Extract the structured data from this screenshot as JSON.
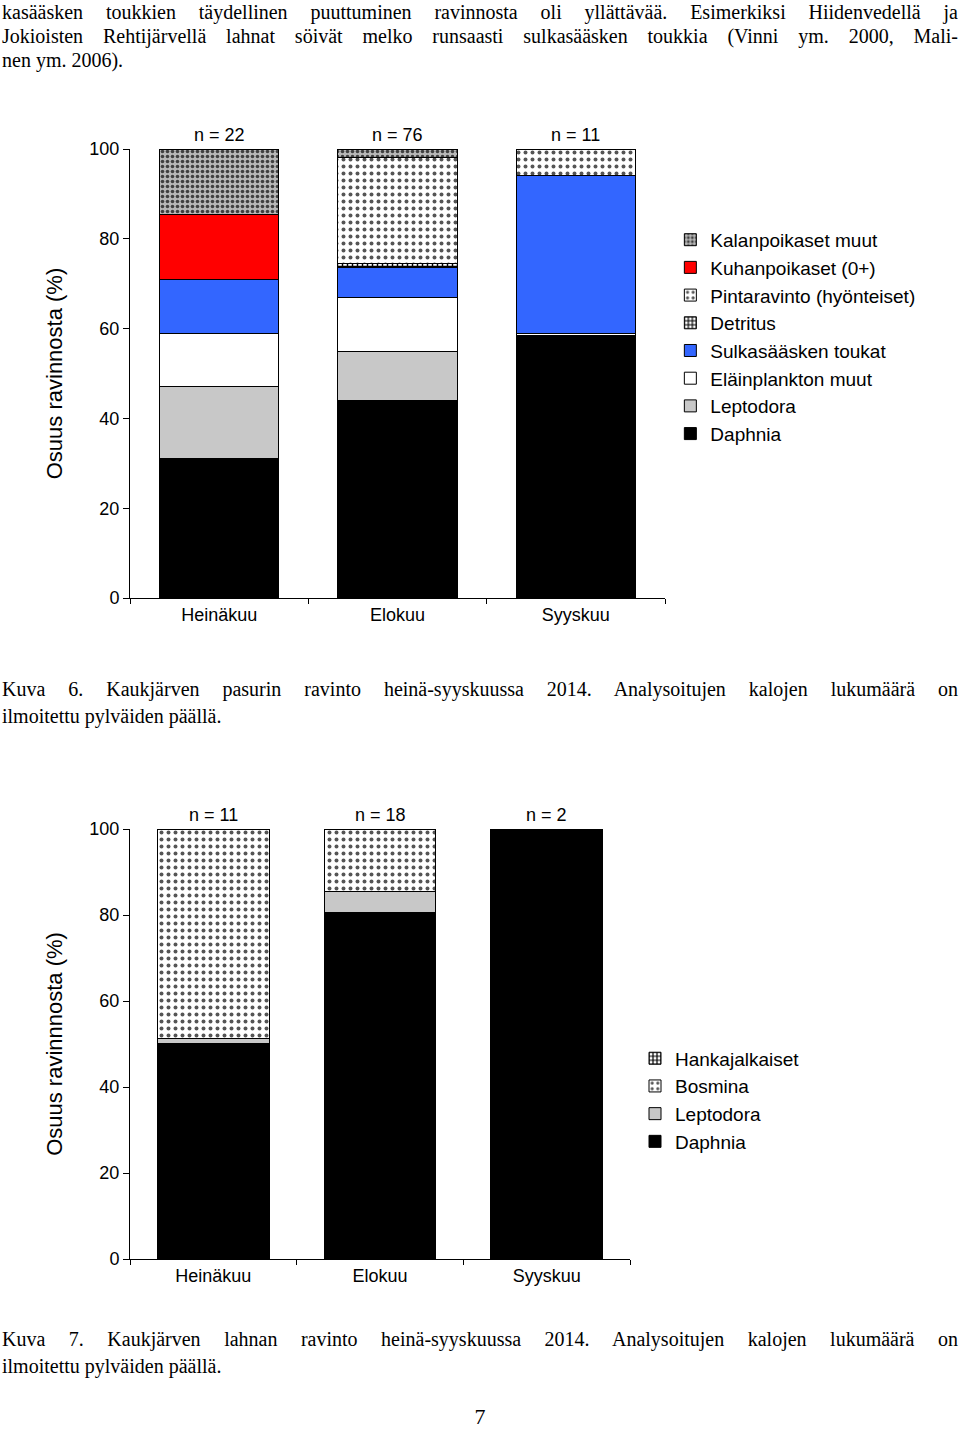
{
  "document": {
    "paragraph_lines": [
      "kasääsken toukkien täydellinen puuttuminen ravinnosta oli yllättävää. Esimerkiksi Hiidenvedellä ja",
      "Jokioisten Rehtijärvellä lahnat söivät melko runsaasti sulkasääsken toukkia (Vinni ym. 2000, Mali-",
      "nen ym. 2006)."
    ],
    "page_number": "7"
  },
  "chart_data": [
    {
      "type": "bar",
      "stacked": true,
      "grid": false,
      "legend": "right",
      "categories": [
        "Heinäkuu",
        "Elokuu",
        "Syyskuu"
      ],
      "ylabel": "Osuus ravinnosta (%)",
      "ylim": [
        0,
        100
      ],
      "yticks": [
        0,
        20,
        40,
        60,
        80,
        100
      ],
      "annotations": [
        {
          "category": "Heinäkuu",
          "text": "n = 22"
        },
        {
          "category": "Elokuu",
          "text": "n = 76"
        },
        {
          "category": "Syyskuu",
          "text": "n = 11"
        }
      ],
      "series": [
        {
          "name": "Daphnia",
          "color": "#000000",
          "marker": "solid",
          "values": [
            31,
            44,
            58.5
          ]
        },
        {
          "name": "Leptodora",
          "color": "#c8c8c8",
          "marker": "solid",
          "values": [
            16,
            11,
            0
          ]
        },
        {
          "name": "Eläinplankton muut",
          "color": "#ffffff",
          "marker": "solid",
          "values": [
            12,
            12,
            0.5
          ]
        },
        {
          "name": "Sulkasääsken toukat",
          "color": "#3366ff",
          "marker": "solid",
          "values": [
            12,
            6.5,
            35
          ]
        },
        {
          "name": "Detritus",
          "color": "#000000",
          "marker": "checks",
          "values": [
            0,
            1,
            0
          ]
        },
        {
          "name": "Pintaravinto (hyönteiset)",
          "color": "#555555",
          "marker": "dots",
          "values": [
            0,
            23.5,
            6
          ]
        },
        {
          "name": "Kuhanpoikaset (0+)",
          "color": "#ff0000",
          "marker": "solid",
          "values": [
            14.5,
            0,
            0
          ]
        },
        {
          "name": "Kalanpoikaset muut",
          "color": "#404040",
          "marker": "shaded",
          "values": [
            14.5,
            2,
            0
          ]
        }
      ],
      "caption_lines": [
        "Kuva 6. Kaukjärven pasurin ravinto heinä-syyskuussa 2014. Analysoitujen kalojen lukumäärä on",
        "ilmoitettu pylväiden päällä."
      ]
    },
    {
      "type": "bar",
      "stacked": true,
      "grid": false,
      "legend": "right",
      "categories": [
        "Heinäkuu",
        "Elokuu",
        "Syyskuu"
      ],
      "ylabel": "Osuus ravinnnosta (%)",
      "ylim": [
        0,
        100
      ],
      "yticks": [
        0,
        20,
        40,
        60,
        80,
        100
      ],
      "annotations": [
        {
          "category": "Heinäkuu",
          "text": "n = 11"
        },
        {
          "category": "Elokuu",
          "text": "n = 18"
        },
        {
          "category": "Syyskuu",
          "text": "n = 2"
        }
      ],
      "series": [
        {
          "name": "Daphnia",
          "color": "#000000",
          "marker": "solid",
          "values": [
            50.2,
            80.5,
            100
          ]
        },
        {
          "name": "Leptodora",
          "color": "#c8c8c8",
          "marker": "solid",
          "values": [
            1,
            5,
            0
          ]
        },
        {
          "name": "Bosmina",
          "color": "#555555",
          "marker": "dots",
          "values": [
            48.8,
            14.5,
            0
          ]
        },
        {
          "name": "Hankajalkaiset",
          "color": "#000000",
          "marker": "checks",
          "values": [
            0,
            0,
            0
          ]
        }
      ],
      "caption_lines": [
        "Kuva 7. Kaukjärven lahnan ravinto heinä-syyskuussa 2014. Analysoitujen kalojen lukumäärä on",
        "ilmoitettu pylväiden päällä."
      ]
    }
  ]
}
